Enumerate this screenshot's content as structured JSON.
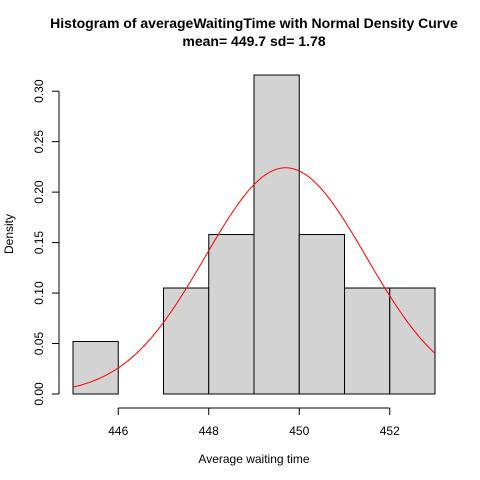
{
  "chart_data": {
    "type": "bar",
    "title": "Histogram of averageWaitingTime with Normal Density Curve",
    "subtitle": "mean= 449.7 sd= 1.78",
    "xlabel": "Average waiting time",
    "ylabel": "Density",
    "xlim": [
      445,
      453
    ],
    "ylim": [
      0,
      0.32
    ],
    "x_ticks": [
      446,
      448,
      450,
      452
    ],
    "y_ticks": [
      0.0,
      0.05,
      0.1,
      0.15,
      0.2,
      0.25,
      0.3
    ],
    "y_tick_labels": [
      "0.00",
      "0.05",
      "0.10",
      "0.15",
      "0.20",
      "0.25",
      "0.30"
    ],
    "bins": [
      {
        "start": 445,
        "end": 446,
        "density": 0.052
      },
      {
        "start": 446,
        "end": 447,
        "density": 0.0
      },
      {
        "start": 447,
        "end": 448,
        "density": 0.105
      },
      {
        "start": 448,
        "end": 449,
        "density": 0.158
      },
      {
        "start": 449,
        "end": 450,
        "density": 0.316
      },
      {
        "start": 450,
        "end": 451,
        "density": 0.158
      },
      {
        "start": 451,
        "end": 452,
        "density": 0.105
      },
      {
        "start": 452,
        "end": 453,
        "density": 0.105
      }
    ],
    "density_curve": {
      "mean": 449.7,
      "sd": 1.78,
      "color": "#ff0000"
    },
    "bar_fill": "#d3d3d3",
    "bar_stroke": "#000000",
    "grid": false
  }
}
